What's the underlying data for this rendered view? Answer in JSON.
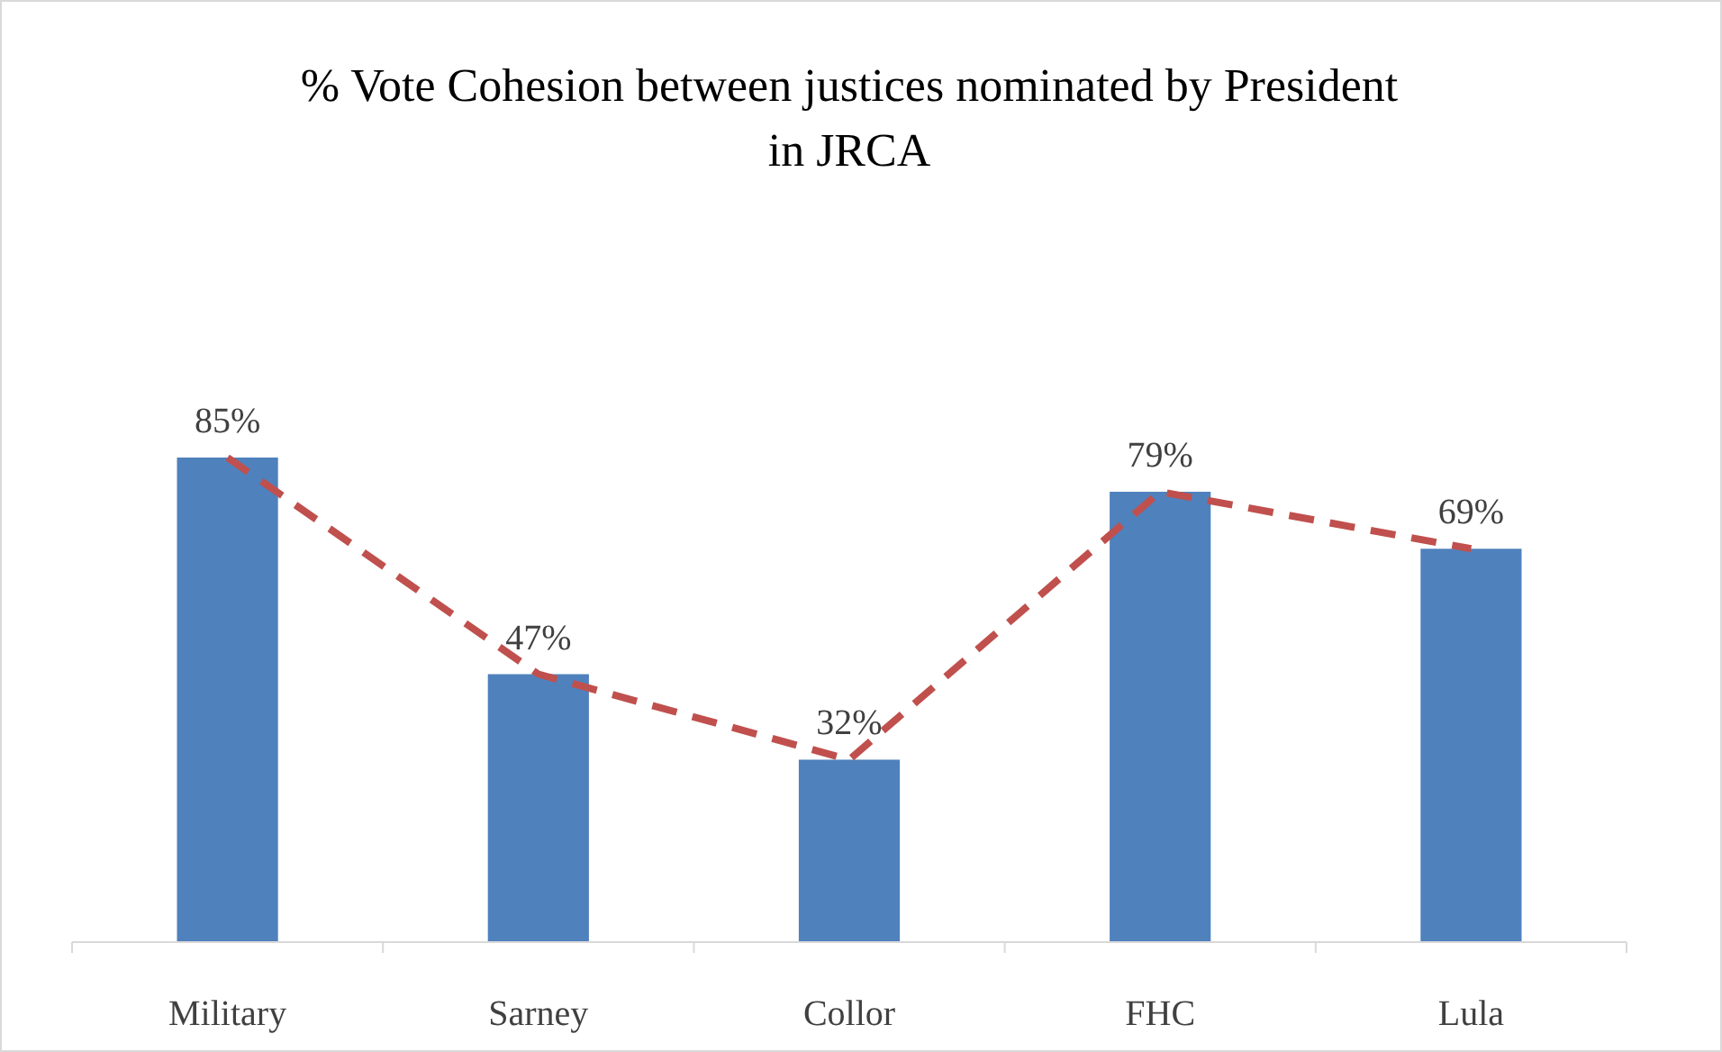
{
  "chart_data": {
    "type": "bar",
    "title": "% Vote Cohesion between justices nominated by President in JRCA",
    "categories": [
      "Military",
      "Sarney",
      "Collor",
      "FHC",
      "Lula"
    ],
    "series": [
      {
        "color": "#4f81bd",
        "values": [
          85,
          47,
          32,
          79,
          69
        ],
        "value_labels": [
          "85%",
          "47%",
          "32%",
          "79%",
          "69%"
        ]
      },
      {
        "type": "line",
        "color": "#c0504d",
        "line_style": "dashed",
        "marker": "none",
        "values": [
          85,
          47,
          32,
          79,
          69
        ]
      }
    ]
  }
}
